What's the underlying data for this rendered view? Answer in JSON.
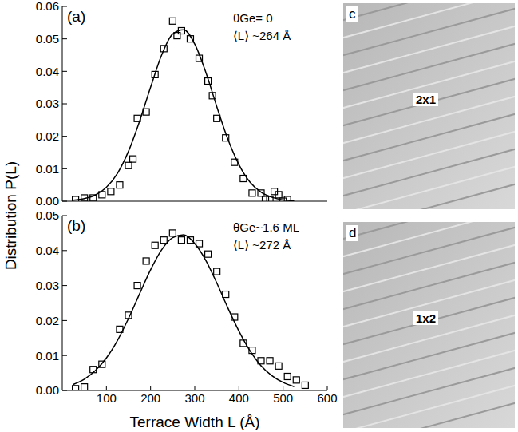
{
  "ylabel": "Distribution P(L)",
  "chart_data": [
    {
      "type": "scatter",
      "title": "(a)",
      "annotations": [
        "θGe= 0",
        "⟨L⟩ ~264 Å"
      ],
      "xlim": [
        0,
        600
      ],
      "xticks": [
        100,
        200,
        300,
        400,
        500,
        600
      ],
      "ylim": [
        0,
        0.06
      ],
      "yticks": [
        {
          "value": 0,
          "label": "0.00"
        },
        0.01,
        0.02,
        0.03,
        0.04,
        0.05,
        0.06
      ],
      "tick_labels": "y",
      "series": [
        {
          "type": "scatter",
          "marker": "square",
          "color": "#000000",
          "x": [
            30,
            50,
            70,
            90,
            110,
            130,
            150,
            160,
            170,
            190,
            210,
            230,
            250,
            260,
            270,
            290,
            310,
            330,
            340,
            350,
            370,
            390,
            410,
            430,
            450,
            460,
            470,
            480,
            490,
            500,
            510
          ],
          "values": [
            0.0005,
            0.001,
            0.001,
            0.002,
            0.003,
            0.005,
            0.011,
            0.013,
            0.0255,
            0.0275,
            0.039,
            0.047,
            0.0555,
            0.051,
            0.0525,
            0.05,
            0.044,
            0.037,
            0.0325,
            0.0255,
            0.0195,
            0.012,
            0.007,
            0.0025,
            0.0025,
            0.0005,
            0.0005,
            0.003,
            0.002,
            0.0,
            0.0005
          ]
        },
        {
          "type": "line",
          "line_style": "solid",
          "color": "#000000",
          "x": [
            25,
            50,
            75,
            100,
            125,
            150,
            175,
            200,
            225,
            250,
            275,
            300,
            325,
            350,
            375,
            400,
            425,
            450,
            475,
            500,
            525
          ],
          "values": [
            0.0003,
            0.0008,
            0.0019,
            0.0043,
            0.0086,
            0.0154,
            0.0246,
            0.0351,
            0.045,
            0.0515,
            0.0528,
            0.0484,
            0.0397,
            0.0291,
            0.0191,
            0.0113,
            0.0059,
            0.0028,
            0.0012,
            0.0004,
            0.0001
          ]
        }
      ]
    },
    {
      "type": "scatter",
      "title": "(b)",
      "annotations": [
        "θGe~1.6 ML",
        "⟨L⟩ ~272 Å"
      ],
      "xlabel": "Terrace Width L (Å)",
      "xlim": [
        0,
        600
      ],
      "xticks": [
        100,
        200,
        300,
        400,
        500,
        600
      ],
      "ylim": [
        0,
        0.05
      ],
      "yticks": [
        {
          "value": 0,
          "label": "0.00"
        },
        0.01,
        0.02,
        0.03,
        0.04,
        0.05
      ],
      "series": [
        {
          "type": "scatter",
          "marker": "square",
          "color": "#000000",
          "x": [
            30,
            50,
            70,
            90,
            130,
            150,
            170,
            190,
            210,
            230,
            250,
            270,
            290,
            310,
            330,
            350,
            370,
            390,
            410,
            430,
            450,
            470,
            490,
            510,
            530,
            550
          ],
          "values": [
            0.0005,
            0.001,
            0.006,
            0.0075,
            0.0175,
            0.0215,
            0.03,
            0.037,
            0.0415,
            0.043,
            0.045,
            0.043,
            0.043,
            0.042,
            0.039,
            0.034,
            0.0275,
            0.021,
            0.0135,
            0.0115,
            0.0085,
            0.0085,
            0.007,
            0.004,
            0.003,
            0.0015
          ]
        },
        {
          "type": "line",
          "line_style": "solid",
          "color": "#000000",
          "x": [
            25,
            50,
            75,
            100,
            125,
            150,
            175,
            200,
            225,
            250,
            275,
            300,
            325,
            350,
            375,
            400,
            425,
            450,
            475,
            500,
            525
          ],
          "values": [
            0.0017,
            0.0032,
            0.0057,
            0.0093,
            0.0143,
            0.0206,
            0.0276,
            0.0345,
            0.0402,
            0.0437,
            0.0445,
            0.042,
            0.0372,
            0.0307,
            0.0236,
            0.017,
            0.0114,
            0.0071,
            0.0042,
            0.0023,
            0.0011
          ]
        }
      ]
    }
  ],
  "images": [
    {
      "letter": "c",
      "label": "2x1"
    },
    {
      "letter": "d",
      "label": "1x2"
    }
  ]
}
